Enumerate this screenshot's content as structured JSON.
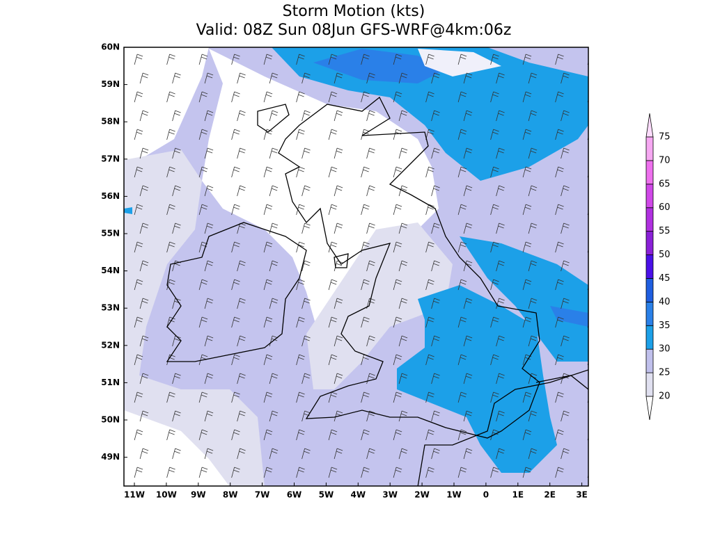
{
  "header": {
    "title": "Storm Motion (kts)",
    "subtitle": "Valid: 08Z Sun 08Jun GFS-WRF@4km:06z"
  },
  "lon_labels": [
    "11W",
    "10W",
    "9W",
    "8W",
    "7W",
    "6W",
    "5W",
    "4W",
    "3W",
    "2W",
    "1W",
    "0",
    "1E",
    "2E",
    "3E"
  ],
  "lat_labels": [
    "60N",
    "59N",
    "58N",
    "57N",
    "56N",
    "55N",
    "54N",
    "53N",
    "52N",
    "51N",
    "50N",
    "49N"
  ],
  "colorbar": {
    "levels": [
      20,
      25,
      30,
      35,
      40,
      45,
      50,
      55,
      60,
      65,
      70,
      75
    ],
    "colors": [
      "#ffffff",
      "#e0e0f0",
      "#c0c0ec",
      "#1ca0e8",
      "#2a80e8",
      "#1f5ee0",
      "#4a10e8",
      "#8a20d8",
      "#b030e0",
      "#d048e8",
      "#ee70ee",
      "#f6a8f2",
      "#fcdcfc"
    ]
  }
}
